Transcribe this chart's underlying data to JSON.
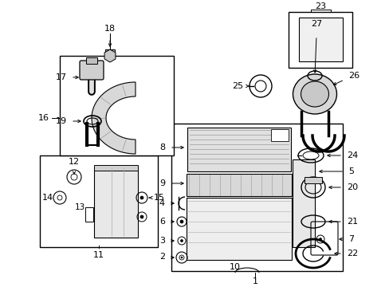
{
  "bg_color": "#ffffff",
  "fig_width": 4.89,
  "fig_height": 3.6,
  "dpi": 100,
  "black": "#000000",
  "gray_light": "#cccccc",
  "gray_mid": "#aaaaaa"
}
